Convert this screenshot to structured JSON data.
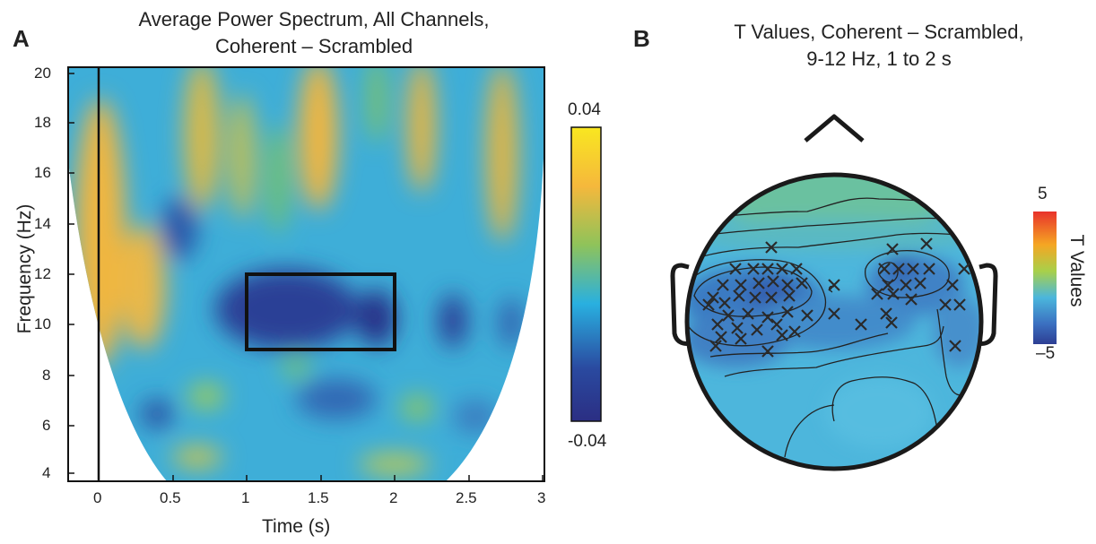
{
  "panel_a": {
    "letter": "A",
    "title_line1": "Average  Power Spectrum, All Channels,",
    "title_line2": "Coherent  – Scrambled",
    "colorbar": {
      "max_label": "0.04",
      "min_label": "-0.04",
      "colors": [
        "#f9e720",
        "#f5b83c",
        "#8fc35a",
        "#29b0e0",
        "#2a4aa0",
        "#2b2e83"
      ]
    }
  },
  "panel_b": {
    "letter": "B",
    "title_line1": "T Values, Coherent – Scrambled,",
    "title_line2": "9-12 Hz, 1 to 2 s",
    "colorbar": {
      "max_label": "5",
      "min_label": "–5",
      "label": "T Values",
      "colors": [
        "#e8322b",
        "#f5a623",
        "#a8d04a",
        "#4bb6dc",
        "#3b6fc0",
        "#2d3e93"
      ]
    }
  },
  "chart_data": [
    {
      "type": "heatmap",
      "title": "Average  Power Spectrum, All Channels, Coherent  – Scrambled",
      "xlabel": "Time (s)",
      "ylabel": "Frequency (Hz)",
      "xlim": [
        -0.2,
        3
      ],
      "ylim": [
        3.8,
        20.2
      ],
      "x_ticks": [
        "0",
        "0.5",
        "1",
        "1.5",
        "2",
        "2.5",
        "3"
      ],
      "y_ticks": [
        "4",
        "6",
        "8",
        "10",
        "12",
        "14",
        "16",
        "18",
        "20"
      ],
      "color_range": [
        -0.04,
        0.04
      ],
      "vline_x": 0,
      "highlight_rect": {
        "x": [
          1,
          2
        ],
        "y": [
          9,
          12
        ]
      }
    },
    {
      "type": "heatmap",
      "subtype": "scalp-topography",
      "title": "T Values, Coherent – Scrambled, 9-12 Hz, 1 to 2 s",
      "color_range": [
        -5,
        5
      ],
      "colorbar_label": "T Values",
      "marked_electrode_count": 56
    }
  ]
}
